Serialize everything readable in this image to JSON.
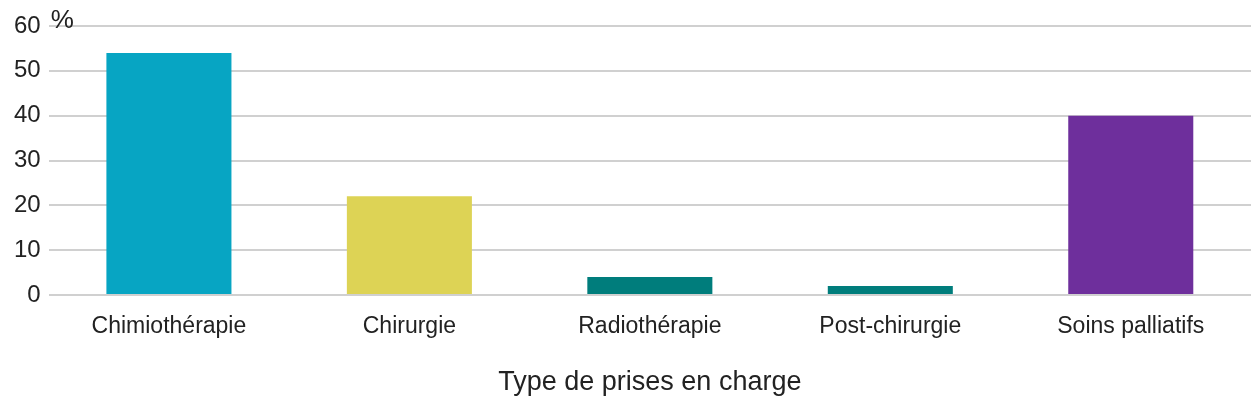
{
  "chart_data": {
    "type": "bar",
    "categories": [
      "Chimiothérapie",
      "Chirurgie",
      "Radiothérapie",
      "Post-chirurgie",
      "Soins palliatifs"
    ],
    "values": [
      54,
      22,
      4,
      2,
      40
    ],
    "colors": [
      "#07a5c3",
      "#ddd355",
      "#007d7c",
      "#007d7c",
      "#6e2f9c"
    ],
    "xlabel": "Type de prises en charge",
    "ylabel": "%",
    "ylim": [
      0,
      60
    ],
    "yticks": [
      0,
      10,
      20,
      30,
      40,
      50,
      60
    ],
    "grid": "y"
  }
}
